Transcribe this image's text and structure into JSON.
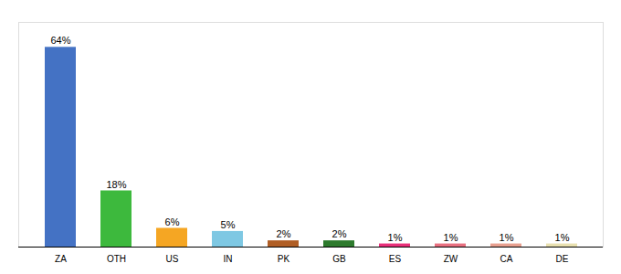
{
  "chart_data": {
    "type": "bar",
    "categories": [
      "ZA",
      "OTH",
      "US",
      "IN",
      "PK",
      "GB",
      "ES",
      "ZW",
      "CA",
      "DE"
    ],
    "values": [
      64,
      18,
      6,
      5,
      2,
      2,
      1,
      1,
      1,
      1
    ],
    "value_labels": [
      "64%",
      "18%",
      "6%",
      "5%",
      "2%",
      "2%",
      "1%",
      "1%",
      "1%",
      "1%"
    ],
    "colors": [
      "#4472c4",
      "#3db93d",
      "#f5a623",
      "#7ec8e3",
      "#b05e25",
      "#2d7a2d",
      "#e8307a",
      "#e87080",
      "#e8a090",
      "#e8e0b0"
    ],
    "ylim": [
      0,
      72
    ],
    "data_labels": true,
    "tick_labels": "x",
    "grid": false
  }
}
